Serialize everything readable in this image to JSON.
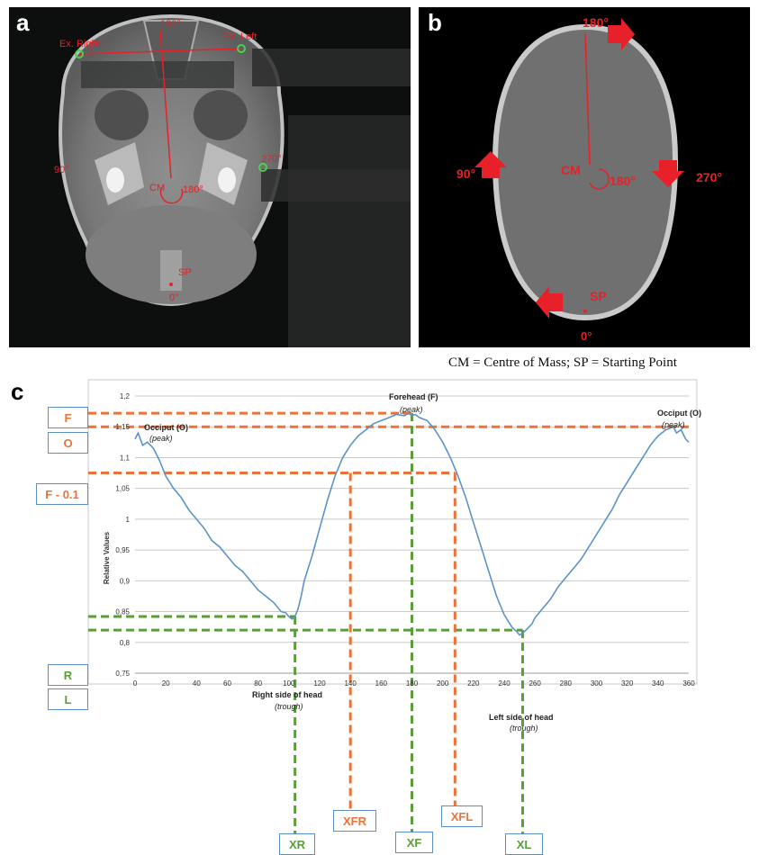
{
  "panels": {
    "a": {
      "letter": "a",
      "labels": {
        "top": "180°",
        "ex_right": "Ex. Right",
        "ex_left": "Ex. Left",
        "left": "90°",
        "right": "270°",
        "cm": "CM",
        "cm_angle": "180°",
        "sp": "SP",
        "bottom": "0°"
      }
    },
    "b": {
      "letter": "b",
      "labels": {
        "top": "180°",
        "left": "90°",
        "right": "270°",
        "cm": "CM",
        "cm_angle": "180°",
        "sp": "SP",
        "bottom": "0°"
      }
    },
    "c": {
      "letter": "c"
    }
  },
  "abbreviations": "CM = Centre of Mass; SP = Starting Point",
  "colors": {
    "line": "#5b93c9",
    "orange": "#e8743b",
    "green": "#5a9e3a",
    "red": "#e8202a",
    "box_border": "#5b8fc7"
  },
  "chart_data": {
    "type": "line",
    "ylabel": "Relative Values",
    "xlim": [
      0,
      360
    ],
    "ylim": [
      0.75,
      1.2
    ],
    "x_ticks": [
      0,
      20,
      40,
      60,
      80,
      100,
      120,
      140,
      160,
      180,
      200,
      220,
      240,
      260,
      280,
      300,
      320,
      340,
      360
    ],
    "y_ticks": [
      0.75,
      0.8,
      0.85,
      0.9,
      0.95,
      1,
      1.05,
      1.1,
      1.15,
      1.2
    ],
    "y_tick_labels": [
      "0,75",
      "0,8",
      "0,85",
      "0,9",
      "0,95",
      "1",
      "1,05",
      "1,1",
      "1,15",
      "1,2"
    ],
    "grid": "horizontal",
    "series": [
      {
        "x": [
          0,
          2,
          5,
          8,
          12,
          16,
          20,
          25,
          30,
          35,
          40,
          45,
          50,
          55,
          60,
          65,
          70,
          75,
          80,
          85,
          90,
          95,
          98,
          100,
          102,
          104,
          106,
          108,
          110,
          115,
          120,
          125,
          130,
          135,
          140,
          145,
          150,
          155,
          160,
          165,
          170,
          175,
          178,
          180,
          182,
          185,
          190,
          195,
          200,
          205,
          210,
          215,
          220,
          225,
          230,
          235,
          240,
          245,
          248,
          250,
          252,
          255,
          258,
          260,
          265,
          270,
          275,
          280,
          285,
          290,
          295,
          300,
          305,
          310,
          315,
          320,
          325,
          330,
          335,
          340,
          345,
          350,
          352,
          355,
          358,
          360
        ],
        "y": [
          1.13,
          1.14,
          1.12,
          1.125,
          1.115,
          1.095,
          1.07,
          1.05,
          1.035,
          1.015,
          1.0,
          0.985,
          0.965,
          0.955,
          0.94,
          0.925,
          0.915,
          0.9,
          0.885,
          0.875,
          0.865,
          0.85,
          0.848,
          0.842,
          0.838,
          0.842,
          0.855,
          0.875,
          0.9,
          0.94,
          0.985,
          1.03,
          1.07,
          1.1,
          1.12,
          1.135,
          1.145,
          1.155,
          1.16,
          1.165,
          1.17,
          1.168,
          1.172,
          1.168,
          1.17,
          1.165,
          1.16,
          1.145,
          1.125,
          1.1,
          1.07,
          1.035,
          0.995,
          0.955,
          0.915,
          0.875,
          0.845,
          0.825,
          0.818,
          0.812,
          0.815,
          0.822,
          0.83,
          0.84,
          0.855,
          0.87,
          0.89,
          0.905,
          0.92,
          0.935,
          0.955,
          0.975,
          0.995,
          1.015,
          1.04,
          1.06,
          1.08,
          1.1,
          1.12,
          1.135,
          1.145,
          1.15,
          1.14,
          1.145,
          1.13,
          1.125
        ]
      }
    ],
    "annotations": {
      "occiput_left": {
        "line1": "Occiput (O)",
        "line2": "(peak)"
      },
      "occiput_right": {
        "line1": "Occiput (O)",
        "line2": "(peak)"
      },
      "forehead": {
        "line1": "Forehead (F)",
        "line2": "(peak)"
      },
      "right_side": {
        "line1": "Right side of head",
        "line2": "(trough)"
      },
      "left_side": {
        "line1": "Left side of head",
        "line2": "(trough)"
      }
    },
    "reference_lines": {
      "horizontal": [
        {
          "label": "F",
          "y": 1.172,
          "color": "orange"
        },
        {
          "label": "O",
          "y": 1.15,
          "color": "orange"
        },
        {
          "label": "F - 0.1",
          "y": 1.075,
          "color": "orange"
        },
        {
          "label": "R",
          "y": 0.842,
          "color": "green"
        },
        {
          "label": "L",
          "y": 0.82,
          "color": "green"
        }
      ],
      "vertical": [
        {
          "label": "XR",
          "x": 104,
          "color": "green"
        },
        {
          "label": "XFR",
          "x": 140,
          "color": "orange"
        },
        {
          "label": "XF",
          "x": 180,
          "color": "green"
        },
        {
          "label": "XFL",
          "x": 208,
          "color": "orange"
        },
        {
          "label": "XL",
          "x": 252,
          "color": "green"
        }
      ]
    }
  }
}
